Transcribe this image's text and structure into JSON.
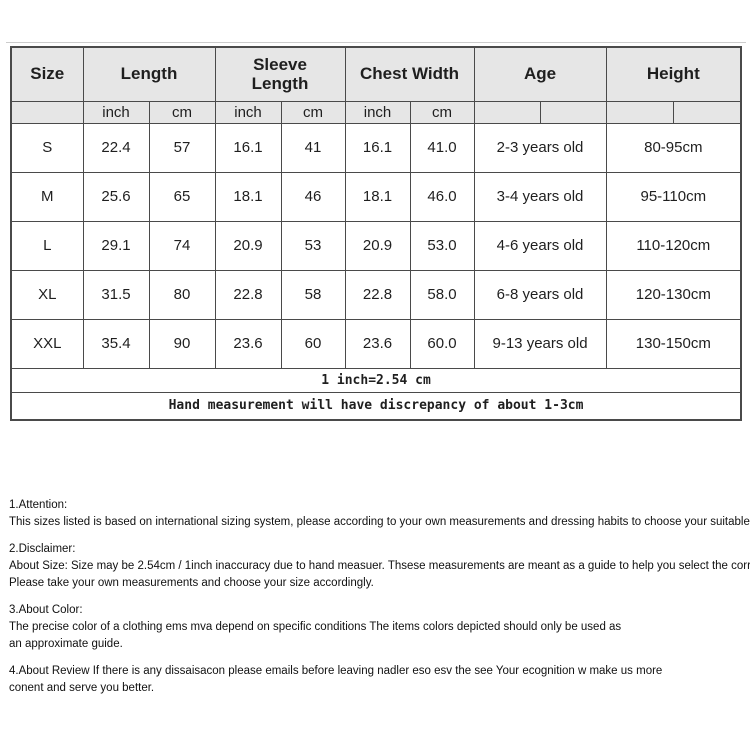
{
  "size_chart": {
    "header": {
      "size": "Size",
      "length": "Length",
      "sleeve_length": "Sleeve Length",
      "chest_width": "Chest Width",
      "age": "Age",
      "height": "Height",
      "unit_inch": "inch",
      "unit_cm": "cm"
    },
    "rows": [
      {
        "size": "S",
        "length_inch": "22.4",
        "length_cm": "57",
        "sleeve_inch": "16.1",
        "sleeve_cm": "41",
        "chest_inch": "16.1",
        "chest_cm": "41.0",
        "age": "2-3 years old",
        "height": "80-95cm"
      },
      {
        "size": "M",
        "length_inch": "25.6",
        "length_cm": "65",
        "sleeve_inch": "18.1",
        "sleeve_cm": "46",
        "chest_inch": "18.1",
        "chest_cm": "46.0",
        "age": "3-4 years old",
        "height": "95-110cm"
      },
      {
        "size": "L",
        "length_inch": "29.1",
        "length_cm": "74",
        "sleeve_inch": "20.9",
        "sleeve_cm": "53",
        "chest_inch": "20.9",
        "chest_cm": "53.0",
        "age": "4-6 years old",
        "height": "110-120cm"
      },
      {
        "size": "XL",
        "length_inch": "31.5",
        "length_cm": "80",
        "sleeve_inch": "22.8",
        "sleeve_cm": "58",
        "chest_inch": "22.8",
        "chest_cm": "58.0",
        "age": "6-8 years old",
        "height": "120-130cm"
      },
      {
        "size": "XXL",
        "length_inch": "35.4",
        "length_cm": "90",
        "sleeve_inch": "23.6",
        "sleeve_cm": "60",
        "chest_inch": "23.6",
        "chest_cm": "60.0",
        "age": "9-13 years old",
        "height": "130-150cm"
      }
    ],
    "footnote1": "1 inch=2.54 cm",
    "footnote2": "Hand measurement will have discrepancy of about 1-3cm"
  },
  "notes": [
    {
      "lines": [
        "1.Attention:",
        "This sizes listed is based on international sizing system, please according to your own measurements and dressing habits to choose your suitable size."
      ]
    },
    {
      "lines": [
        "2.Disclaimer:",
        "About Size: Size may be 2.54cm / 1inch inaccuracy due to hand measuer. Thsese measurements are meant as a guide to help you select the correct size.",
        "Please take your own measurements and choose your size accordingly."
      ]
    },
    {
      "lines": [
        "3.About Color:",
        "The precise color of a clothing ems mva depend on specific conditions The items colors depicted should only be used as",
        "an approximate guide."
      ]
    },
    {
      "lines": [
        "4.About Review If there is any dissaisacon please emails before leaving nadler eso esv the see Your ecognition w make us more",
        "conent and serve you better."
      ]
    }
  ],
  "colors": {
    "header_bg": "#e6e6e6",
    "border": "#4a4a4a",
    "text": "#1f1f1f"
  }
}
